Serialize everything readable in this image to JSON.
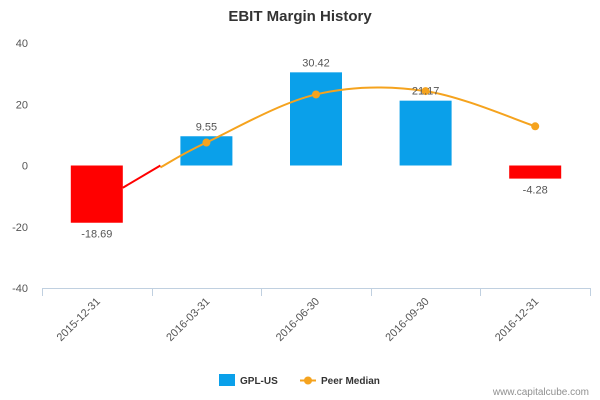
{
  "chart_data": {
    "type": "bar",
    "title": "EBIT Margin History",
    "categories": [
      "2015-12-31",
      "2016-03-31",
      "2016-06-30",
      "2016-09-30",
      "2016-12-31"
    ],
    "series": [
      {
        "name": "GPL-US",
        "type": "bar",
        "values": [
          -18.69,
          9.55,
          30.42,
          21.17,
          -4.28
        ],
        "data_labels": [
          "-18.69",
          "9.55",
          "30.42",
          "21.17",
          "-4.28"
        ],
        "color_positive": "#0aa0ea",
        "color_negative": "#ff0000"
      },
      {
        "name": "Peer Median",
        "type": "line",
        "values": [
          null,
          7.5,
          23.2,
          24.3,
          12.8
        ],
        "color": "#f5a31e"
      }
    ],
    "yticks": [
      40,
      20,
      0,
      -20,
      -40
    ],
    "ylim": [
      -40,
      40
    ],
    "legend_position": "bottom",
    "grid": false,
    "credit": "www.capitalcube.com"
  }
}
